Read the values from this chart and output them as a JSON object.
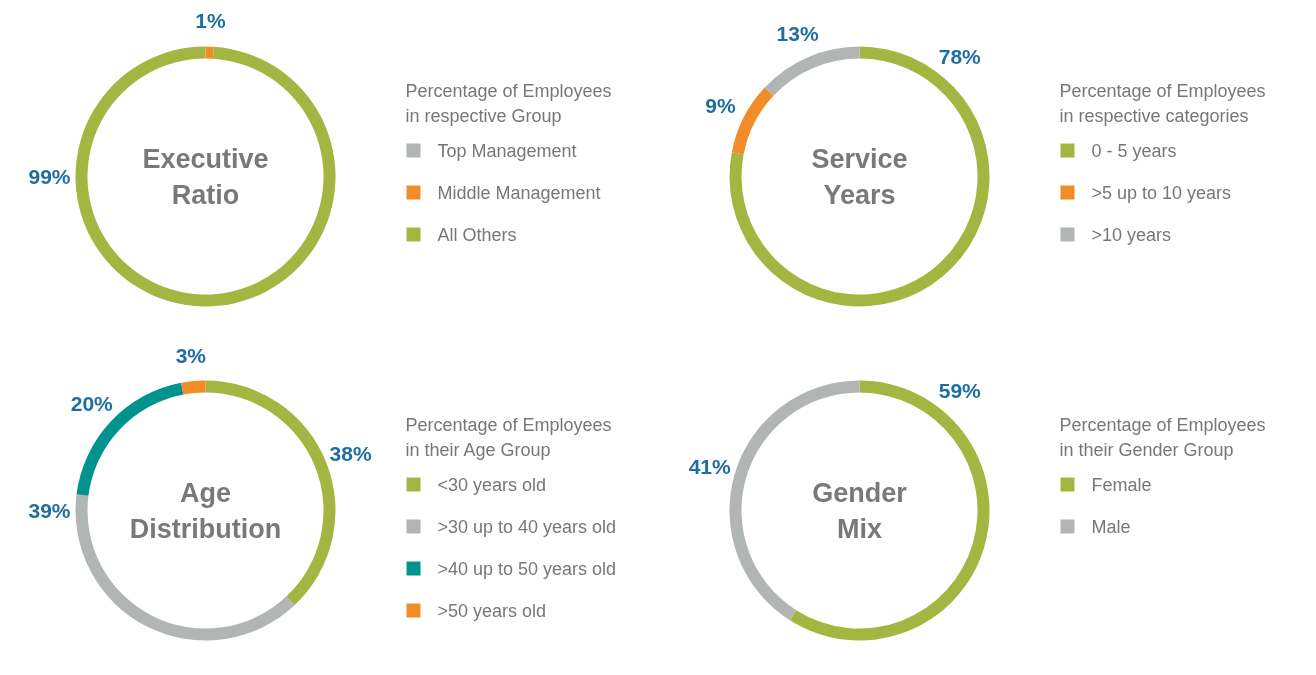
{
  "chart_data": [
    {
      "type": "donut",
      "title": "Executive Ratio",
      "legend_title": "Percentage of Employees in respective Group",
      "categories": [
        "Top Management",
        "Middle Management",
        "All Others"
      ],
      "values": [
        0,
        1,
        99
      ],
      "colors": [
        "#b1b5b4",
        "#f28c28",
        "#a5b542"
      ],
      "value_labels": [
        null,
        "1%",
        "99%"
      ],
      "legend": "right"
    },
    {
      "type": "donut",
      "title": "Service Years",
      "legend_title": "Percentage of Employees in respective categories",
      "categories": [
        "0 - 5 years",
        ">5 up to 10 years",
        ">10 years"
      ],
      "values": [
        78,
        9,
        13
      ],
      "colors": [
        "#a5b542",
        "#f28c28",
        "#b1b5b4"
      ],
      "value_labels": [
        "78%",
        "9%",
        "13%"
      ],
      "legend": "right"
    },
    {
      "type": "donut",
      "title": "Age Distribution",
      "legend_title": "Percentage of Employees in their Age Group",
      "categories": [
        "<30 years old",
        ">30 up to 40 years old",
        ">40 up to 50 years old",
        ">50 years old"
      ],
      "values": [
        38,
        39,
        20,
        3
      ],
      "colors": [
        "#a5b542",
        "#b1b5b4",
        "#00928f",
        "#f28c28"
      ],
      "value_labels": [
        "38%",
        "39%",
        "20%",
        "3%"
      ],
      "legend": "right"
    },
    {
      "type": "donut",
      "title": "Gender Mix",
      "legend_title": "Percentage of Employees in their Gender Group",
      "categories": [
        "Female",
        "Male"
      ],
      "values": [
        59,
        41
      ],
      "colors": [
        "#a5b542",
        "#b1b5b4"
      ],
      "value_labels": [
        "59%",
        "41%"
      ],
      "legend": "right"
    }
  ]
}
